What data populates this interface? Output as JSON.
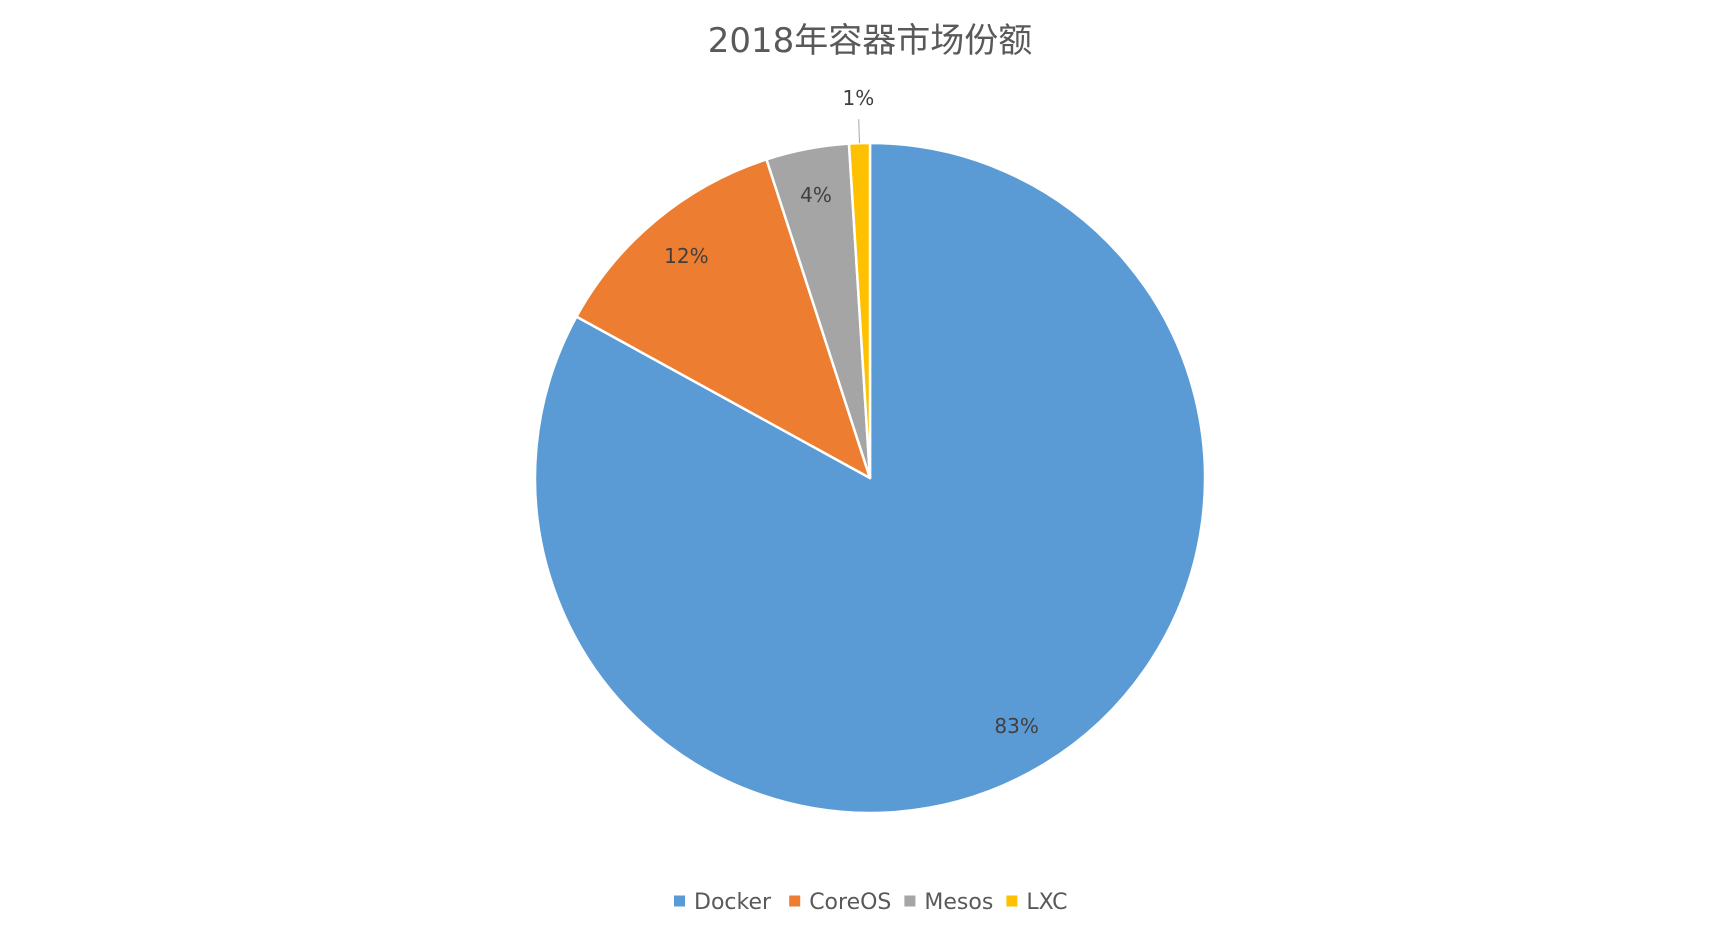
{
  "chart_data": {
    "type": "pie",
    "title": "2018年容器市场份额",
    "categories": [
      "Docker",
      "CoreOS",
      "Mesos",
      "LXC"
    ],
    "values": [
      83,
      12,
      4,
      1
    ],
    "data_labels": [
      "83%",
      "12%",
      "4%",
      "1%"
    ],
    "colors": [
      "#5B9BD5",
      "#ED7D31",
      "#A5A5A5",
      "#FFC000"
    ],
    "legend_position": "bottom",
    "start_angle": "12 o'clock",
    "direction": "clockwise"
  }
}
